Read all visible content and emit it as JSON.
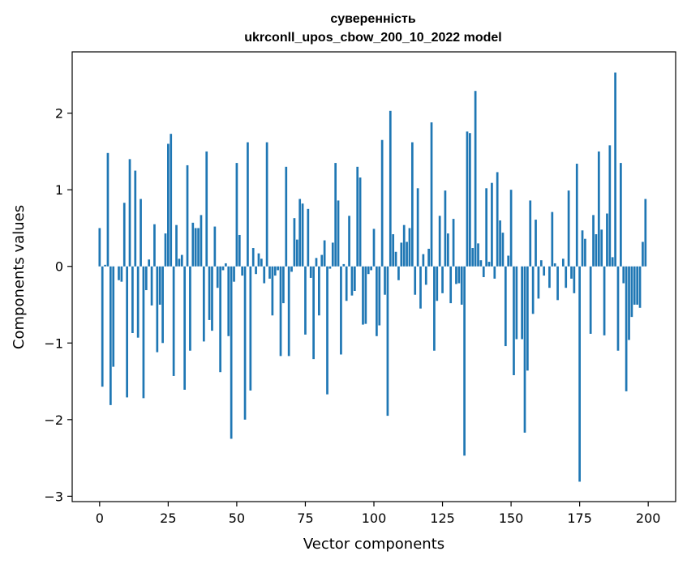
{
  "chart_data": {
    "type": "bar",
    "title_line1": "суверенність",
    "title_line2": "ukrconll_upos_cbow_200_10_2022 model",
    "xlabel": "Vector components",
    "ylabel": "Components values",
    "xlim": [
      -10,
      210
    ],
    "ylim": [
      -3.07,
      2.8
    ],
    "xticks": [
      0,
      25,
      50,
      75,
      100,
      125,
      150,
      175,
      200
    ],
    "xtick_labels": [
      "0",
      "25",
      "50",
      "75",
      "100",
      "125",
      "150",
      "175",
      "200"
    ],
    "yticks": [
      -3,
      -2,
      -1,
      0,
      1,
      2
    ],
    "ytick_labels": [
      "−3",
      "−2",
      "−1",
      "0",
      "1",
      "2"
    ],
    "bar_color": "#1f77b4",
    "values": [
      0.5,
      -1.57,
      0.02,
      1.48,
      -1.81,
      -1.31,
      0.0,
      -0.18,
      -0.2,
      0.83,
      -1.71,
      1.4,
      -0.87,
      1.25,
      -0.93,
      0.88,
      -1.72,
      -0.31,
      0.09,
      -0.51,
      0.55,
      -1.12,
      -0.5,
      -1.0,
      0.43,
      1.6,
      1.73,
      -1.43,
      0.54,
      0.1,
      0.15,
      -1.61,
      1.32,
      -1.1,
      0.57,
      0.5,
      0.5,
      0.67,
      -0.98,
      1.5,
      -0.7,
      -0.84,
      0.52,
      -0.28,
      -1.38,
      -0.05,
      0.04,
      -0.91,
      -2.25,
      -0.2,
      1.35,
      0.41,
      -0.12,
      -2.0,
      1.62,
      -1.62,
      0.24,
      -0.1,
      0.17,
      0.1,
      -0.22,
      1.62,
      -0.16,
      -0.64,
      -0.12,
      -0.05,
      -1.17,
      -0.48,
      1.3,
      -1.17,
      -0.07,
      0.63,
      0.35,
      0.88,
      0.82,
      -0.89,
      0.75,
      -0.15,
      -1.21,
      0.11,
      -0.64,
      0.15,
      0.34,
      -1.67,
      -0.03,
      0.31,
      1.35,
      0.86,
      -1.15,
      0.03,
      -0.45,
      0.66,
      -0.38,
      -0.32,
      1.3,
      1.16,
      -0.76,
      -0.75,
      -0.1,
      -0.05,
      0.49,
      -0.91,
      -0.77,
      1.65,
      -0.37,
      -1.95,
      2.03,
      0.42,
      0.19,
      -0.18,
      0.31,
      0.54,
      0.32,
      0.5,
      1.62,
      -0.37,
      1.02,
      -0.55,
      0.16,
      -0.24,
      0.23,
      1.88,
      -1.1,
      -0.45,
      0.66,
      -0.35,
      0.99,
      0.43,
      -0.48,
      0.62,
      -0.23,
      -0.22,
      -0.5,
      -2.47,
      1.76,
      1.74,
      0.24,
      2.29,
      0.3,
      0.08,
      -0.14,
      1.02,
      0.06,
      1.09,
      -0.16,
      1.23,
      0.6,
      0.44,
      -1.04,
      0.14,
      1.0,
      -1.42,
      -0.95,
      0.0,
      -0.95,
      -2.17,
      -1.36,
      0.86,
      -0.62,
      0.61,
      -0.42,
      0.08,
      -0.12,
      0.0,
      -0.28,
      0.71,
      0.04,
      -0.44,
      0.0,
      0.1,
      -0.28,
      0.99,
      -0.16,
      -0.35,
      1.34,
      -2.81,
      0.47,
      0.36,
      0.0,
      -0.88,
      0.67,
      0.42,
      1.5,
      0.48,
      -0.9,
      0.69,
      1.58,
      0.12,
      2.53,
      -1.1,
      1.35,
      -0.22,
      -1.63,
      -0.96,
      -0.66,
      -0.5,
      -0.5,
      -0.54,
      0.32,
      0.88
    ]
  }
}
